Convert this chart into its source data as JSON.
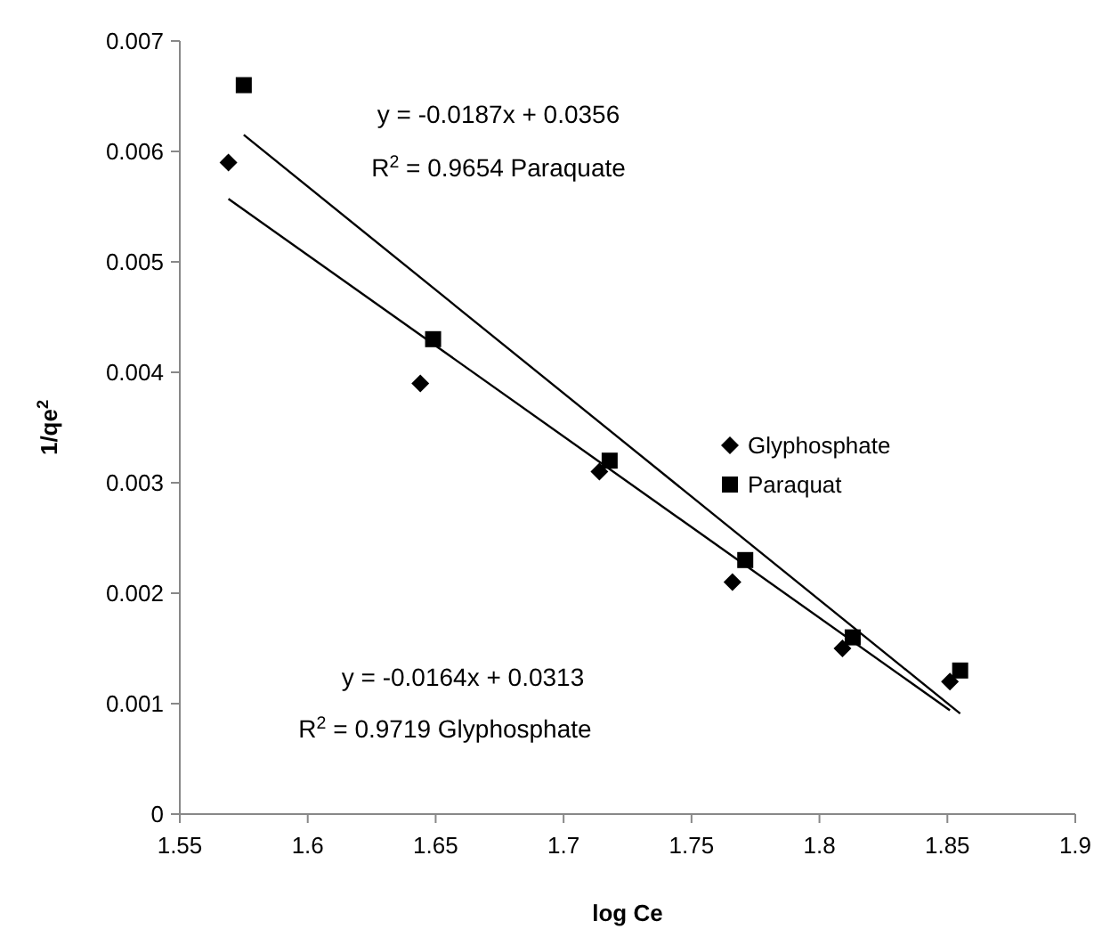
{
  "chart_data": {
    "type": "scatter",
    "xlabel": "log Ce",
    "ylabel": "1/qe$^{2}$",
    "xlim": [
      1.55,
      1.9
    ],
    "xticks": [
      1.55,
      1.6,
      1.65,
      1.7,
      1.75,
      1.8,
      1.85,
      1.9
    ],
    "ylim": [
      0,
      0.007
    ],
    "yticks": [
      0,
      0.001,
      0.002,
      0.003,
      0.004,
      0.005,
      0.006,
      0.007
    ],
    "grid": false,
    "legend": "right",
    "series": [
      {
        "name": "Glyphosphate",
        "color": "#000000",
        "marker": "diamond",
        "x": [
          1.569,
          1.644,
          1.714,
          1.766,
          1.809,
          1.851
        ],
        "values": [
          0.0059,
          0.0039,
          0.0031,
          0.0021,
          0.0015,
          0.0012
        ]
      },
      {
        "name": "Paraquat",
        "color": "#000000",
        "marker": "square",
        "x": [
          1.575,
          1.649,
          1.718,
          1.771,
          1.813,
          1.855
        ],
        "values": [
          0.0066,
          0.0043,
          0.0032,
          0.0023,
          0.0016,
          0.0013
        ]
      },
      {
        "type": "line",
        "color": "#000000",
        "marker": "none",
        "line_style": "solid",
        "x": [
          1.569,
          1.851
        ],
        "values": [
          0.00557,
          0.00094
        ]
      },
      {
        "type": "line",
        "color": "#000000",
        "marker": "none",
        "line_style": "solid",
        "x": [
          1.575,
          1.855
        ],
        "values": [
          0.00615,
          0.00091
        ]
      }
    ],
    "annotations": [
      "y = -0.0187x + 0.0356",
      "R$^{2}$ = 0.9654 Paraquate",
      "y = -0.0164x + 0.0313",
      "R$^{2}$ = 0.9719 Glyphosphate"
    ]
  }
}
